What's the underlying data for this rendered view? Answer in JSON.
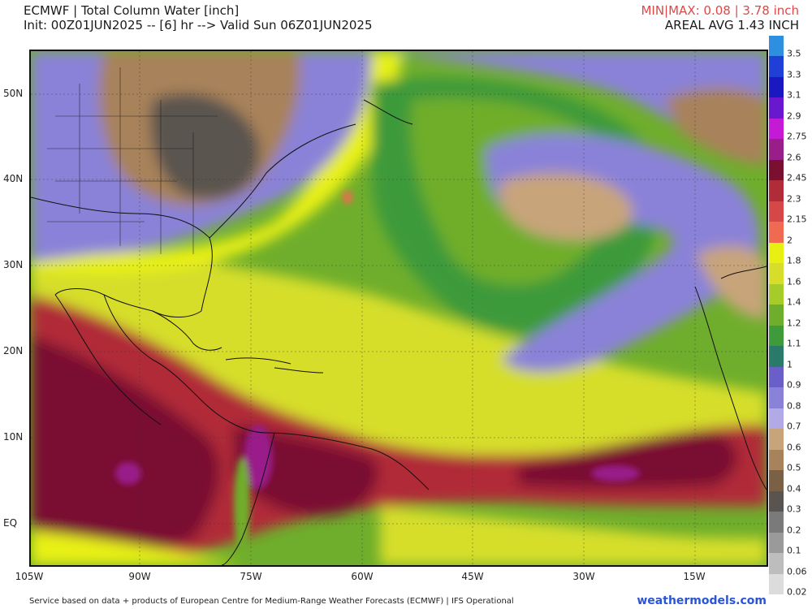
{
  "header": {
    "title_line1": "ECMWF | Total Column Water [inch]",
    "title_line2": "Init: 00Z01JUN2025 -- [6] hr --> Valid Sun 06Z01JUN2025",
    "minmax": "MIN|MAX: 0.08 | 3.78 inch",
    "areal_avg": "AREAL AVG 1.43 INCH"
  },
  "map": {
    "lat_labels": [
      "50N",
      "40N",
      "30N",
      "20N",
      "10N",
      "EQ"
    ],
    "lon_labels": [
      "105W",
      "90W",
      "75W",
      "60W",
      "45W",
      "30W",
      "15W"
    ]
  },
  "colorbar": {
    "labels": [
      "3.5",
      "3.3",
      "3.1",
      "2.9",
      "2.75",
      "2.6",
      "2.45",
      "2.3",
      "2.15",
      "2",
      "1.8",
      "1.6",
      "1.4",
      "1.2",
      "1.1",
      "1",
      "0.9",
      "0.8",
      "0.7",
      "0.6",
      "0.5",
      "0.4",
      "0.3",
      "0.2",
      "0.1",
      "0.06",
      "0.02"
    ],
    "colors": [
      "#2e8fe0",
      "#1f3fd6",
      "#1a18c0",
      "#6a18d0",
      "#c41ad6",
      "#9a1e8a",
      "#7a1030",
      "#b02c38",
      "#d64848",
      "#ef6a50",
      "#e8f012",
      "#d6de2a",
      "#a6cc2a",
      "#6fae2c",
      "#3e9a3a",
      "#2a7a6a",
      "#6a5ec8",
      "#8a82d8",
      "#b2aae6",
      "#c8a47a",
      "#a8825a",
      "#7a6044",
      "#5a5450",
      "#7a7a7a",
      "#9a9a9a",
      "#bdbdbd",
      "#dcdcdc"
    ]
  },
  "footer": {
    "credit": "Service based on data + products of European Centre for Medium-Range Weather Forecasts (ECMWF) | IFS Operational",
    "brand": "weathermodels.com"
  }
}
